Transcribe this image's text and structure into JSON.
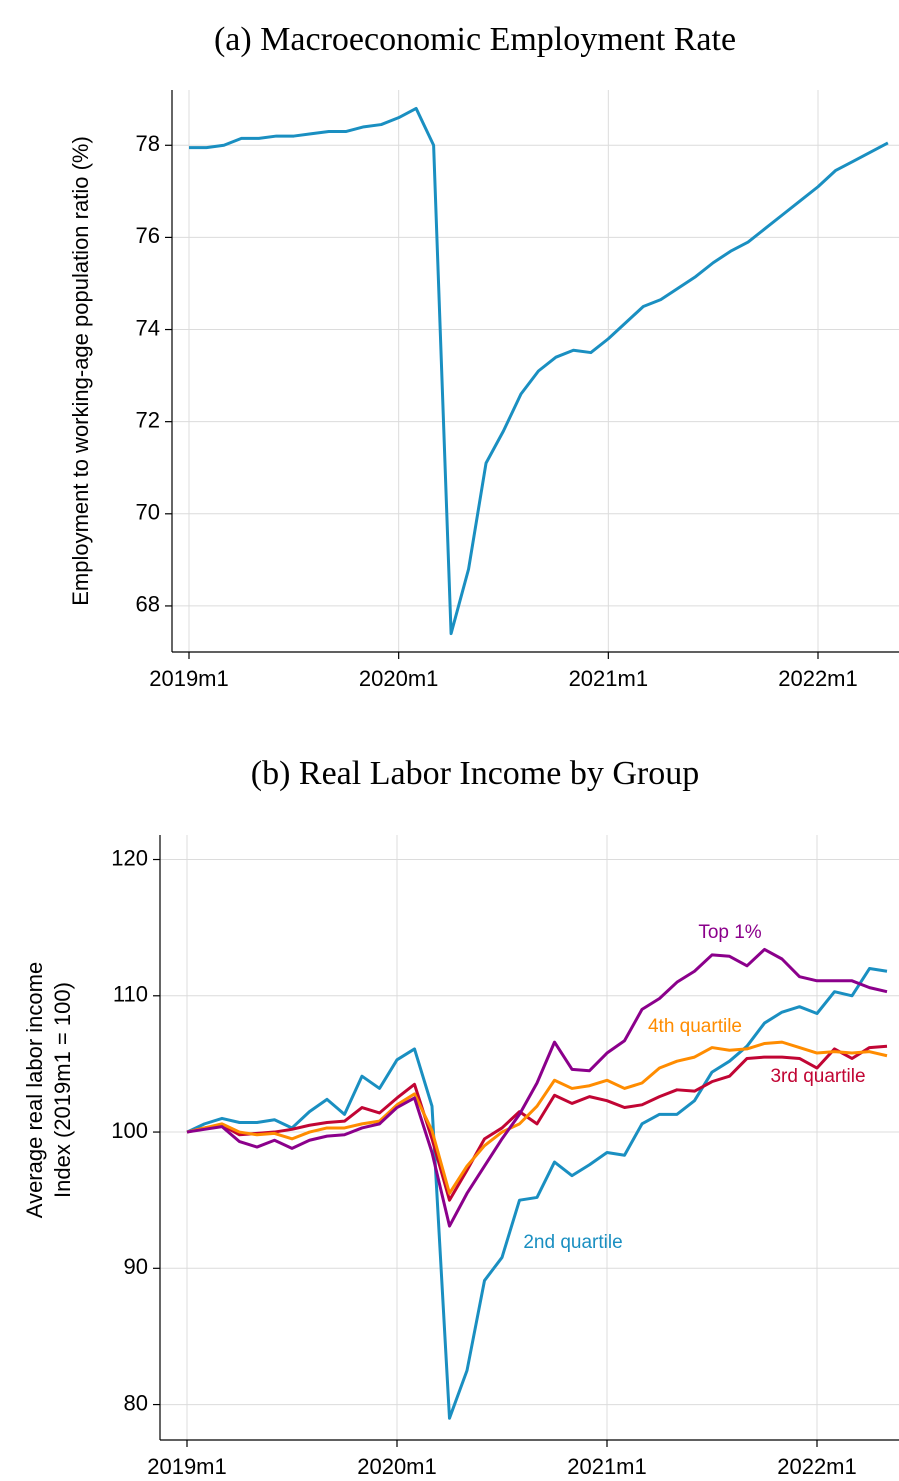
{
  "chart_data": [
    {
      "type": "line",
      "title": "(a) Macroeconomic Employment Rate",
      "ylabel": [
        "Employment to working-age population ratio (%)"
      ],
      "categories": [
        "2019m1",
        null,
        null,
        null,
        null,
        null,
        null,
        null,
        null,
        null,
        null,
        null,
        "2020m1",
        null,
        null,
        null,
        null,
        null,
        null,
        null,
        null,
        null,
        null,
        null,
        "2021m1",
        null,
        null,
        null,
        null,
        null,
        null,
        null,
        null,
        null,
        null,
        null,
        "2022m1",
        null,
        null,
        null,
        null
      ],
      "values": [
        77.95,
        77.95,
        78.0,
        78.15,
        78.15,
        78.2,
        78.2,
        78.25,
        78.3,
        78.3,
        78.4,
        78.45,
        78.6,
        78.8,
        78.0,
        67.4,
        68.8,
        71.1,
        71.8,
        72.6,
        73.1,
        73.4,
        73.55,
        73.5,
        73.8,
        74.15,
        74.5,
        74.65,
        74.9,
        75.15,
        75.45,
        75.7,
        75.9,
        76.2,
        76.5,
        76.8,
        77.1,
        77.45,
        77.65,
        77.85,
        78.05
      ],
      "color": "#1a8fc1",
      "ylim": [
        67,
        79.2
      ],
      "yticks": [
        68,
        70,
        72,
        74,
        76,
        78
      ],
      "grid": true
    },
    {
      "type": "line",
      "title": "(b) Real Labor Income by Group",
      "ylabel": [
        "Average real labor income",
        "Index (2019m1 = 100)"
      ],
      "categories": [
        "2019m1",
        null,
        null,
        null,
        null,
        null,
        null,
        null,
        null,
        null,
        null,
        null,
        "2020m1",
        null,
        null,
        null,
        null,
        null,
        null,
        null,
        null,
        null,
        null,
        null,
        "2021m1",
        null,
        null,
        null,
        null,
        null,
        null,
        null,
        null,
        null,
        null,
        null,
        "2022m1",
        null,
        null,
        null,
        null
      ],
      "series": [
        {
          "name": "2nd quartile",
          "color": "#1a8fc1",
          "values": [
            100,
            100.6,
            101.0,
            100.7,
            100.7,
            100.9,
            100.3,
            101.5,
            102.4,
            101.3,
            104.1,
            103.2,
            105.3,
            106.1,
            101.9,
            79.0,
            82.5,
            89.1,
            90.8,
            95.0,
            95.2,
            97.8,
            96.8,
            97.6,
            98.5,
            98.3,
            100.6,
            101.3,
            101.3,
            102.3,
            104.4,
            105.2,
            106.3,
            108.0,
            108.8,
            109.2,
            108.7,
            110.3,
            110.0,
            112.0,
            111.8
          ]
        },
        {
          "name": "3rd quartile",
          "color": "#c10534",
          "values": [
            100,
            100.3,
            100.5,
            99.8,
            99.9,
            100.0,
            100.2,
            100.5,
            100.7,
            100.8,
            101.8,
            101.4,
            102.5,
            103.5,
            99.5,
            95.0,
            97.2,
            99.5,
            100.3,
            101.5,
            100.6,
            102.7,
            102.1,
            102.6,
            102.3,
            101.8,
            102.0,
            102.6,
            103.1,
            103.0,
            103.7,
            104.1,
            105.4,
            105.5,
            105.5,
            105.4,
            104.7,
            106.1,
            105.4,
            106.2,
            106.3
          ]
        },
        {
          "name": "4th quartile",
          "color": "#ff8c00",
          "values": [
            100,
            100.3,
            100.6,
            100.0,
            99.8,
            99.9,
            99.5,
            100.0,
            100.3,
            100.3,
            100.6,
            100.8,
            102.0,
            102.8,
            100.1,
            95.5,
            97.5,
            99.0,
            100.0,
            100.6,
            101.9,
            103.8,
            103.2,
            103.4,
            103.8,
            103.2,
            103.6,
            104.7,
            105.2,
            105.5,
            106.2,
            106.0,
            106.1,
            106.5,
            106.6,
            106.2,
            105.8,
            105.9,
            105.8,
            105.9,
            105.6
          ]
        },
        {
          "name": "Top 1%",
          "color": "#8b008b",
          "values": [
            100,
            100.2,
            100.4,
            99.3,
            98.9,
            99.4,
            98.8,
            99.4,
            99.7,
            99.8,
            100.3,
            100.6,
            101.8,
            102.5,
            98.5,
            93.1,
            95.5,
            97.5,
            99.5,
            101.3,
            103.6,
            106.6,
            104.6,
            104.5,
            105.8,
            106.7,
            109.0,
            109.8,
            111.0,
            111.8,
            113.0,
            112.9,
            112.2,
            113.4,
            112.7,
            111.4,
            111.1,
            111.1,
            111.1,
            110.6,
            110.3
          ]
        }
      ],
      "ylim": [
        77.4,
        121.8
      ],
      "yticks": [
        80,
        90,
        100,
        110,
        120
      ],
      "grid": true
    }
  ]
}
